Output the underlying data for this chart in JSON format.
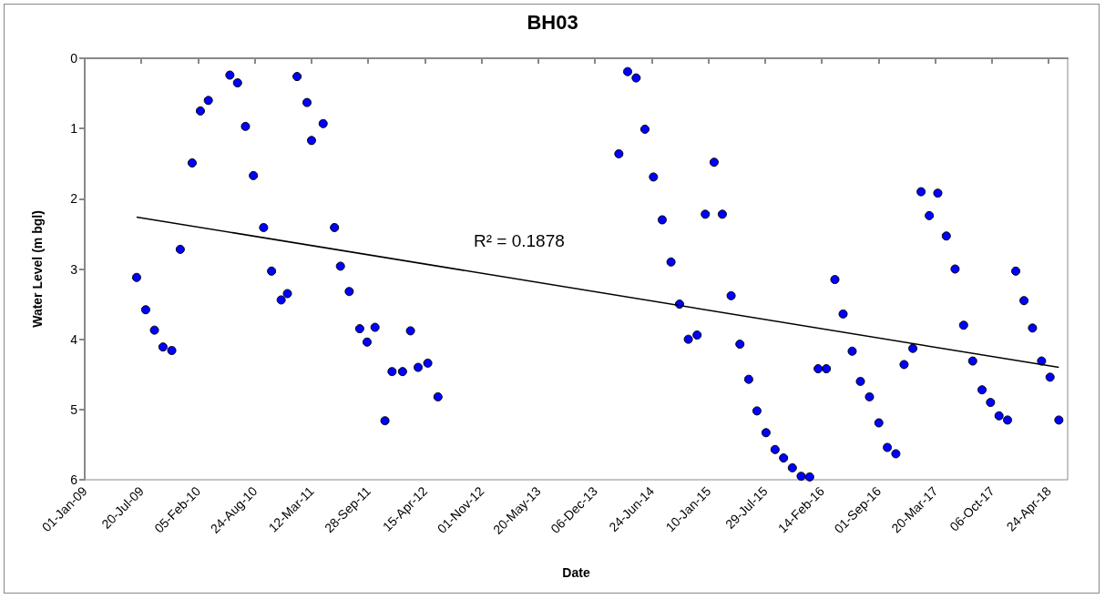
{
  "chart_data": {
    "type": "scatter",
    "title": "BH03",
    "xlabel": "Date",
    "ylabel": "Water Level (m bgl)",
    "annotations": [
      "R² = 0.1878"
    ],
    "marker": "circle",
    "grid": false,
    "legend": false,
    "xlim": [
      "2009-01-01",
      "2018-06-30"
    ],
    "xticks": [
      {
        "value": "2009-01-01",
        "label": "01-Jan-09"
      },
      {
        "value": "2009-07-20",
        "label": "20-Jul-09"
      },
      {
        "value": "2010-02-05",
        "label": "05-Feb-10"
      },
      {
        "value": "2010-08-24",
        "label": "24-Aug-10"
      },
      {
        "value": "2011-03-12",
        "label": "12-Mar-11"
      },
      {
        "value": "2011-09-28",
        "label": "28-Sep-11"
      },
      {
        "value": "2012-04-15",
        "label": "15-Apr-12"
      },
      {
        "value": "2012-11-01",
        "label": "01-Nov-12"
      },
      {
        "value": "2013-05-20",
        "label": "20-May-13"
      },
      {
        "value": "2013-12-06",
        "label": "06-Dec-13"
      },
      {
        "value": "2014-06-24",
        "label": "24-Jun-14"
      },
      {
        "value": "2015-01-10",
        "label": "10-Jan-15"
      },
      {
        "value": "2015-07-29",
        "label": "29-Jul-15"
      },
      {
        "value": "2016-02-14",
        "label": "14-Feb-16"
      },
      {
        "value": "2016-09-01",
        "label": "01-Sep-16"
      },
      {
        "value": "2017-03-20",
        "label": "20-Mar-17"
      },
      {
        "value": "2017-10-06",
        "label": "06-Oct-17"
      },
      {
        "value": "2018-04-24",
        "label": "24-Apr-18"
      }
    ],
    "ylim": [
      6,
      0
    ],
    "yticks": [
      0,
      1,
      2,
      3,
      4,
      5,
      6
    ],
    "series": [
      {
        "color": "#0000ff",
        "x": [
          "2009-07-03",
          "2009-08-04",
          "2009-09-04",
          "2009-10-04",
          "2009-11-04",
          "2009-12-04",
          "2010-01-15",
          "2010-02-13",
          "2010-03-13",
          "2010-05-28",
          "2010-06-24",
          "2010-07-22",
          "2010-08-19",
          "2010-09-24",
          "2010-10-22",
          "2010-11-25",
          "2010-12-17",
          "2011-01-20",
          "2011-02-24",
          "2011-03-12",
          "2011-04-22",
          "2011-06-01",
          "2011-06-22",
          "2011-07-23",
          "2011-08-29",
          "2011-09-24",
          "2011-10-22",
          "2011-11-26",
          "2011-12-21",
          "2012-01-27",
          "2012-02-24",
          "2012-03-22",
          "2012-04-25",
          "2012-05-31",
          "2014-02-28",
          "2014-03-31",
          "2014-04-30",
          "2014-05-31",
          "2014-06-30",
          "2014-07-31",
          "2014-08-31",
          "2014-09-30",
          "2014-10-31",
          "2014-12-01",
          "2014-12-30",
          "2015-01-30",
          "2015-02-28",
          "2015-03-31",
          "2015-05-01",
          "2015-06-01",
          "2015-06-30",
          "2015-08-01",
          "2015-09-02",
          "2015-10-02",
          "2015-11-02",
          "2015-12-03",
          "2016-01-02",
          "2016-02-01",
          "2016-03-01",
          "2016-03-31",
          "2016-04-29",
          "2016-05-31",
          "2016-06-29",
          "2016-07-31",
          "2016-09-02",
          "2016-10-02",
          "2016-11-01",
          "2016-11-30",
          "2016-12-31",
          "2017-01-29",
          "2017-02-27",
          "2017-03-29",
          "2017-04-28",
          "2017-05-29",
          "2017-06-28",
          "2017-07-30",
          "2017-09-01",
          "2017-10-01",
          "2017-10-31",
          "2017-11-30",
          "2017-12-29",
          "2018-01-27",
          "2018-02-26",
          "2018-03-30",
          "2018-04-29",
          "2018-05-30"
        ],
        "values": [
          3.12,
          3.58,
          3.87,
          4.11,
          4.16,
          2.72,
          1.49,
          0.75,
          0.6,
          0.24,
          0.35,
          0.97,
          1.67,
          2.41,
          3.03,
          3.44,
          3.35,
          0.26,
          0.63,
          1.17,
          0.93,
          2.41,
          2.96,
          3.32,
          3.85,
          4.04,
          3.83,
          5.16,
          4.46,
          4.46,
          3.88,
          4.4,
          4.34,
          4.82,
          1.36,
          0.19,
          0.28,
          1.01,
          1.69,
          2.3,
          2.9,
          3.5,
          4.0,
          3.94,
          2.22,
          1.48,
          2.22,
          3.38,
          4.07,
          4.57,
          5.02,
          5.33,
          5.57,
          5.69,
          5.83,
          5.95,
          5.96,
          4.42,
          4.42,
          3.15,
          3.64,
          4.17,
          4.6,
          4.82,
          5.19,
          5.54,
          5.63,
          4.36,
          4.13,
          1.9,
          2.24,
          1.92,
          2.53,
          3.0,
          3.8,
          4.31,
          4.72,
          4.9,
          5.09,
          5.15,
          3.03,
          3.45,
          3.84,
          4.31,
          4.54,
          5.15
        ]
      },
      {
        "type": "line",
        "color": "#000000",
        "marker": "none",
        "line_style": "solid",
        "x": [
          "2009-07-03",
          "2018-05-30"
        ],
        "values": [
          2.26,
          4.4
        ]
      }
    ]
  }
}
